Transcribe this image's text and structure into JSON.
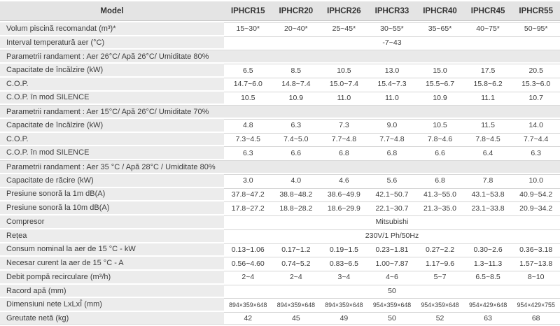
{
  "colors": {
    "header_bg": "#e4e4e4",
    "label_bg": "#ececec",
    "section_bg": "#e9e9e9",
    "row_line": "#d6d6d6",
    "text": "#3c3c3c"
  },
  "table": {
    "header": {
      "model_label": "Model",
      "columns": [
        "IPHCR15",
        "IPHCR20",
        "IPHCR26",
        "IPHCR33",
        "IPHCR40",
        "IPHCR45",
        "IPHCR55"
      ]
    },
    "rows": [
      {
        "type": "data",
        "label": "Volum piscină recomandat (m³)*",
        "values": [
          "15~30*",
          "20~40*",
          "25~45*",
          "30~55*",
          "35~65*",
          "40~75*",
          "50~95*"
        ]
      },
      {
        "type": "span",
        "label": "Interval temperatură aer (°C)",
        "value": "-7~43"
      },
      {
        "type": "section",
        "label": "Parametrii randament : Aer 26°C/ Apă 26°C/ Umiditate 80%"
      },
      {
        "type": "data",
        "label": "Capacitate de încălzire (kW)",
        "values": [
          "6.5",
          "8.5",
          "10.5",
          "13.0",
          "15.0",
          "17.5",
          "20.5"
        ]
      },
      {
        "type": "data",
        "label": "C.O.P.",
        "values": [
          "14.7~6.0",
          "14.8~7.4",
          "15.0~7.4",
          "15.4~7.3",
          "15.5~6.7",
          "15.8~6.2",
          "15.3~6.0"
        ]
      },
      {
        "type": "data",
        "label": "C.O.P. în mod SILENCE",
        "values": [
          "10.5",
          "10.9",
          "11.0",
          "11.0",
          "10.9",
          "11.1",
          "10.7"
        ]
      },
      {
        "type": "section",
        "label": "Parametrii randament : Aer 15°C/ Apă 26°C/ Umiditate 70%"
      },
      {
        "type": "data",
        "label": "Capacitate de încălzire (kW)",
        "values": [
          "4.8",
          "6.3",
          "7.3",
          "9.0",
          "10.5",
          "11.5",
          "14.0"
        ]
      },
      {
        "type": "data",
        "label": "C.O.P.",
        "values": [
          "7.3~4.5",
          "7.4~5.0",
          "7.7~4.8",
          "7.7~4.8",
          "7.8~4.6",
          "7.8~4.5",
          "7.7~4.4"
        ]
      },
      {
        "type": "data",
        "label": "C.O.P. în mod SILENCE",
        "values": [
          "6.3",
          "6.6",
          "6.8",
          "6.8",
          "6.6",
          "6.4",
          "6.3"
        ]
      },
      {
        "type": "section",
        "label": "Parametrii randament : Aer 35 °C / Apă 28°C / Umiditate 80%"
      },
      {
        "type": "data",
        "label": "Capacitate de răcire (kW)",
        "values": [
          "3.0",
          "4.0",
          "4.6",
          "5.6",
          "6.8",
          "7.8",
          "10.0"
        ]
      },
      {
        "type": "data",
        "label": "Presiune sonoră la 1m dB(A)",
        "values": [
          "37.8~47.2",
          "38.8~48.2",
          "38.6~49.9",
          "42.1~50.7",
          "41.3~55.0",
          "43.1~53.8",
          "40.9~54.2"
        ]
      },
      {
        "type": "data",
        "label": "Presiune sonoră la 10m dB(A)",
        "values": [
          "17.8~27.2",
          "18.8~28.2",
          "18.6~29.9",
          "22.1~30.7",
          "21.3~35.0",
          "23.1~33.8",
          "20.9~34.2"
        ]
      },
      {
        "type": "span",
        "label": "Compresor",
        "value": "Mitsubishi"
      },
      {
        "type": "span",
        "label": "Rețea",
        "value": "230V/1 Ph/50Hz"
      },
      {
        "type": "data",
        "label": "Consum nominal la aer de 15 °C - kW",
        "values": [
          "0.13~1.06",
          "0.17~1.2",
          "0.19~1.5",
          "0.23~1.81",
          "0.27~2.2",
          "0.30~2.6",
          "0.36~3.18"
        ]
      },
      {
        "type": "data",
        "label": "Necesar curent la aer de 15 °C - A",
        "values": [
          "0.56~4.60",
          "0.74~5.2",
          "0.83~6.5",
          "1.00~7.87",
          "1.17~9.6",
          "1.3~11.3",
          "1.57~13.8"
        ]
      },
      {
        "type": "data",
        "label": "Debit pompă recirculare (m³/h)",
        "values": [
          "2~4",
          "2~4",
          "3~4",
          "4~6",
          "5~7",
          "6.5~8.5",
          "8~10"
        ]
      },
      {
        "type": "span",
        "label": "Racord apă (mm)",
        "value": "50"
      },
      {
        "type": "data",
        "small": true,
        "label": "Dimensiuni nete LxLxÎ (mm)",
        "values": [
          "894×359×648",
          "894×359×648",
          "894×359×648",
          "954×359×648",
          "954×359×648",
          "954×429×648",
          "954×429×755"
        ]
      },
      {
        "type": "data",
        "label": "Greutate netă (kg)",
        "values": [
          "42",
          "45",
          "49",
          "50",
          "52",
          "63",
          "68"
        ]
      }
    ]
  }
}
